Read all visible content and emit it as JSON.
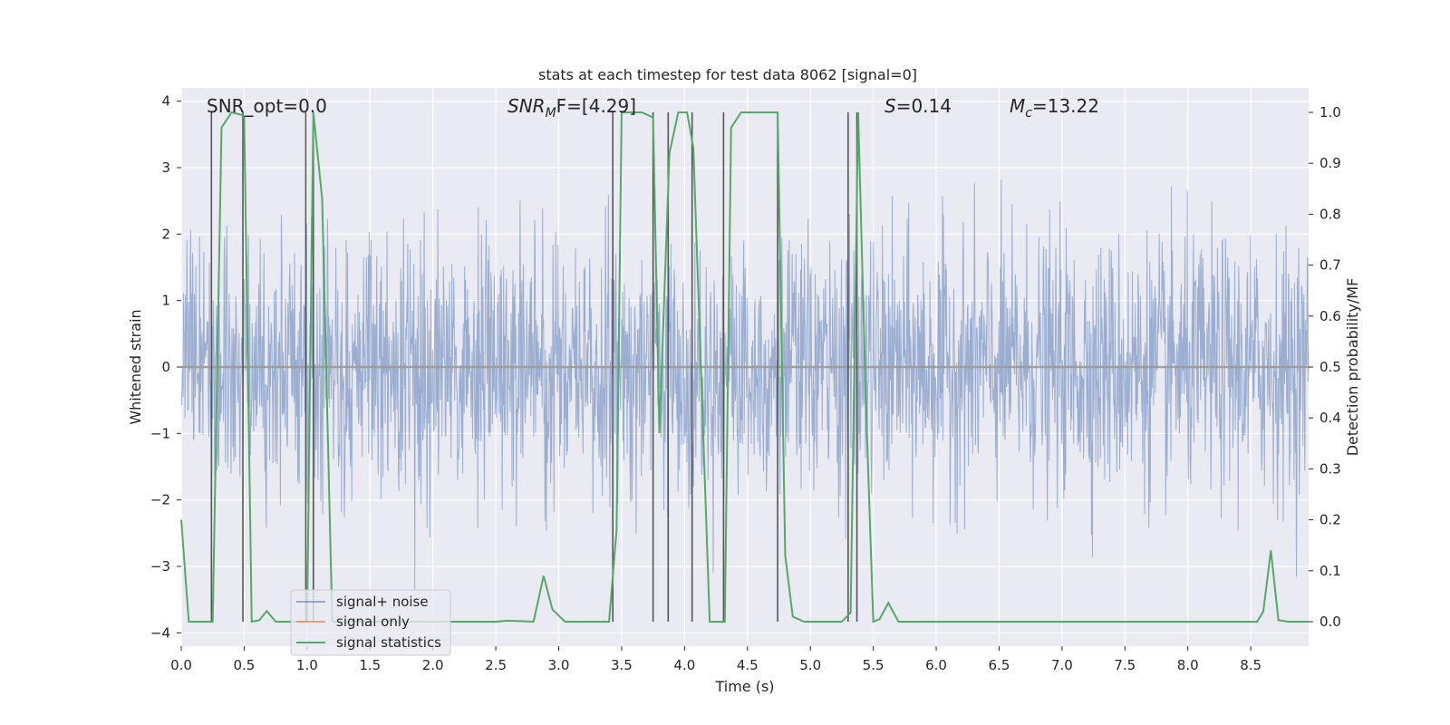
{
  "chart_data": {
    "type": "line",
    "title": "stats at each timestep for test data 8062 [signal=0]",
    "xlabel": "Time (s)",
    "ylabel": "Whitened strain",
    "ylabel_right": "Detection probability/MF",
    "xlim": [
      0,
      8.96
    ],
    "ylim": [
      -4.2,
      4.2
    ],
    "ylim_right": [
      -0.048,
      1.048
    ],
    "x_ticks": [
      0.0,
      0.5,
      1.0,
      1.5,
      2.0,
      2.5,
      3.0,
      3.5,
      4.0,
      4.5,
      5.0,
      5.5,
      6.0,
      6.5,
      7.0,
      7.5,
      8.0,
      8.5
    ],
    "x_tick_labels": [
      "0.0",
      "0.5",
      "1.0",
      "1.5",
      "2.0",
      "2.5",
      "3.0",
      "3.5",
      "4.0",
      "4.5",
      "5.0",
      "5.5",
      "6.0",
      "6.5",
      "7.0",
      "7.5",
      "8.0",
      "8.5"
    ],
    "y_ticks": [
      4,
      3,
      2,
      1,
      0,
      -1,
      -2,
      -3,
      -4
    ],
    "y_tick_labels": [
      "4",
      "3",
      "2",
      "1",
      "0",
      "−1",
      "−2",
      "−3",
      "−4"
    ],
    "y_right_ticks": [
      1.0,
      0.9,
      0.8,
      0.7,
      0.6,
      0.5,
      0.4,
      0.3,
      0.2,
      0.1,
      0.0
    ],
    "y_right_tick_labels": [
      "1.0",
      "0.9",
      "0.8",
      "0.7",
      "0.6",
      "0.5",
      "0.4",
      "0.3",
      "0.2",
      "0.1",
      "0.0"
    ],
    "grid": true,
    "annotations": [
      {
        "label": "SNR_opt=0.0",
        "x": 0.2
      },
      {
        "label": "SNR_MF=[4.29]",
        "x": 2.6
      },
      {
        "label": "S=0.14",
        "x": 5.6
      },
      {
        "label": "M_c=13.22",
        "x": 6.6
      }
    ],
    "annotation_text": {
      "snr_opt": "SNR_opt=0.0",
      "snr_mf_main": "SNR",
      "snr_mf_sub": "M",
      "snr_mf_rest": "F=[4.29]",
      "s_main": "S",
      "s_rest": "=0.14",
      "mc_main": "M",
      "mc_sub": "c",
      "mc_rest": "=13.22"
    },
    "legend": {
      "position": "lower-left",
      "entries": [
        "signal+ noise",
        "signal only",
        "signal statistics"
      ]
    },
    "series_colors": {
      "signal_noise": "#4c72b0",
      "signal_only": "#dd8452",
      "signal_statistics": "#55a868",
      "trigger_lines": "#555555"
    },
    "series": [
      {
        "name": "signal+ noise",
        "axis": "left",
        "description": "whitened strain noise, approx Gaussian, amplitude within about -3.6..3.9",
        "envelope": {
          "x": [
            0,
            8.96
          ],
          "upper_typical": 2.0,
          "lower_typical": -2.0
        }
      },
      {
        "name": "signal only",
        "axis": "left",
        "x": [
          0.0,
          8.96
        ],
        "y": [
          0.0,
          0.0
        ]
      },
      {
        "name": "signal statistics",
        "axis": "right",
        "x": [
          0.0,
          0.06,
          0.25,
          0.32,
          0.4,
          0.48,
          0.5,
          0.56,
          0.62,
          0.68,
          0.75,
          0.8,
          0.9,
          1.0,
          1.05,
          1.12,
          1.2,
          1.3,
          1.5,
          2.0,
          2.5,
          2.6,
          2.8,
          2.88,
          2.95,
          3.05,
          3.4,
          3.46,
          3.5,
          3.66,
          3.75,
          3.8,
          3.88,
          3.95,
          4.02,
          4.07,
          4.2,
          4.32,
          4.37,
          4.45,
          4.74,
          4.8,
          4.86,
          4.95,
          5.05,
          5.25,
          5.32,
          5.38,
          5.44,
          5.5,
          5.55,
          5.62,
          5.7,
          6.0,
          8.45,
          8.55,
          8.6,
          8.66,
          8.72,
          8.8,
          8.96
        ],
        "y": [
          0.2,
          0.0,
          0.0,
          0.97,
          1.0,
          0.995,
          0.99,
          0.0,
          0.003,
          0.021,
          0.0,
          0.0,
          0.0,
          0.0,
          1.0,
          0.83,
          0.0,
          0.0,
          0.0,
          0.0,
          0.0,
          0.002,
          0.0,
          0.09,
          0.024,
          0.0,
          0.0,
          0.18,
          1.0,
          1.0,
          0.99,
          0.37,
          0.92,
          1.0,
          1.0,
          0.93,
          0.0,
          0.0,
          0.97,
          1.0,
          1.0,
          0.13,
          0.01,
          0.0,
          0.0,
          0.0,
          0.018,
          1.0,
          0.44,
          0.0,
          0.005,
          0.037,
          0.0,
          0.0,
          0.0,
          0.0,
          0.02,
          0.14,
          0.003,
          0.0,
          0.0
        ]
      }
    ],
    "trigger_times": [
      0.24,
      0.49,
      0.99,
      1.05,
      3.43,
      3.75,
      3.87,
      4.06,
      4.31,
      4.74,
      5.3,
      5.37
    ]
  }
}
